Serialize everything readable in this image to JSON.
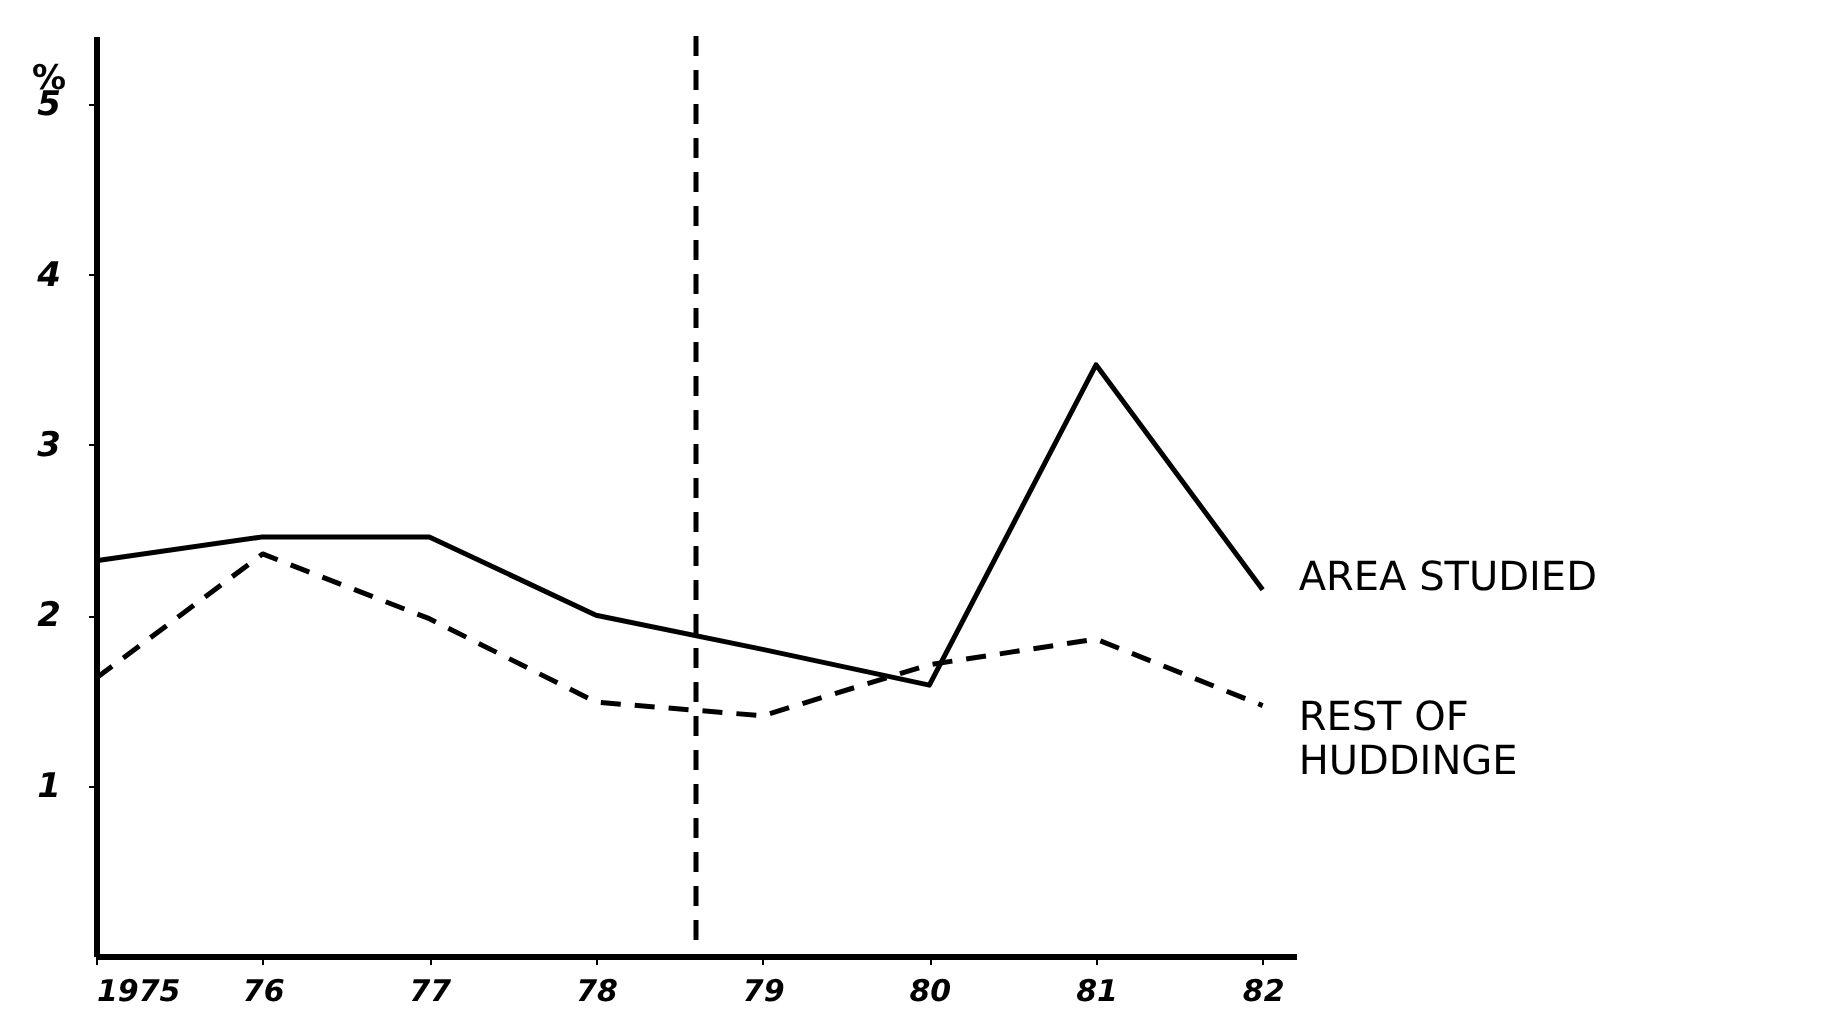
{
  "chart_data": {
    "type": "line",
    "ylabel": "%",
    "x": [
      1975,
      1976,
      1977,
      1978,
      1979,
      1980,
      1981,
      1982
    ],
    "xlim": [
      1975,
      1982.2
    ],
    "xticks": [
      1975,
      {
        "value": 1976,
        "label": "76"
      },
      {
        "value": 1977,
        "label": "77"
      },
      {
        "value": 1978,
        "label": "78"
      },
      {
        "value": 1979,
        "label": "79"
      },
      {
        "value": 1980,
        "label": "80"
      },
      {
        "value": 1981,
        "label": "81"
      },
      {
        "value": 1982,
        "label": "82"
      }
    ],
    "ylim": [
      0,
      5.4
    ],
    "yticks": [
      1,
      2,
      3,
      4,
      5
    ],
    "series": [
      {
        "name": "AREA STUDIED",
        "color": "#000000",
        "line_style": "solid",
        "values": [
          2.32,
          2.46,
          2.46,
          2.0,
          1.8,
          1.59,
          3.47,
          2.15
        ]
      },
      {
        "name": "REST OF\nHUDDINGE",
        "color": "#000000",
        "line_style": "dashed",
        "values": [
          1.63,
          2.36,
          1.98,
          1.49,
          1.41,
          1.71,
          1.86,
          1.47
        ]
      }
    ],
    "ref_lines": [
      {
        "axis": "x",
        "value": 1978.6,
        "line_style": "dashed",
        "color": "#000000"
      }
    ],
    "grid": false,
    "legend": false,
    "marker": "none"
  }
}
